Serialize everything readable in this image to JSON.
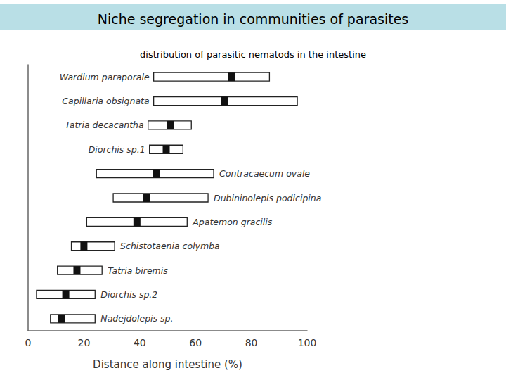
{
  "chart_data": {
    "type": "range",
    "title": "Niche segregation in communities of parasites",
    "subtitle": "distribution of parasitic nematods in the intestine",
    "x_label": "Distance along intestine (%)",
    "categories": [
      "Wardium paraporale",
      "Capillaria obsignata",
      "Tatria decacantha",
      "Diorchis sp.1",
      "Contracaecum ovale",
      "Dubininolepis podicipina",
      "Apatemon gracilis",
      "Schistotaenia colymba",
      "Tatria biremis",
      "Diorchis sp.2",
      "Nadejdolepis sp."
    ],
    "start": [
      45,
      45,
      43,
      43.5,
      24.5,
      30.5,
      21,
      15.5,
      10.5,
      3,
      8
    ],
    "end": [
      86.5,
      96.5,
      58.5,
      55.5,
      66.5,
      64.5,
      57,
      31,
      26.5,
      24,
      24
    ],
    "median": [
      73,
      70.5,
      51,
      49.5,
      46,
      42.5,
      39,
      20,
      17.5,
      13.5,
      12
    ],
    "color": "#ffffff",
    "xlim": [
      0,
      100
    ],
    "xticks": [
      0,
      20,
      40,
      60,
      80,
      100
    ],
    "grid": false,
    "tick_labels": "x"
  }
}
